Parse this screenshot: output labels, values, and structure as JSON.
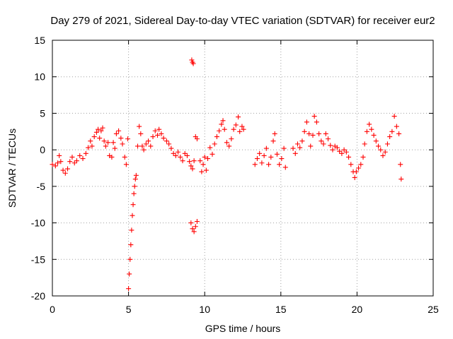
{
  "chart_data": {
    "type": "scatter",
    "title": "Day 279 of 2021, Sidereal Day-to-day VTEC variation (SDTVAR) for receiver eur2",
    "xlabel": "GPS time / hours",
    "ylabel": "SDTVAR / TECUs",
    "xlim": [
      0,
      25
    ],
    "ylim": [
      -20,
      15
    ],
    "x_ticks": [
      0,
      5,
      10,
      15,
      20,
      25
    ],
    "y_ticks": [
      -20,
      -15,
      -10,
      -5,
      0,
      5,
      10,
      15
    ],
    "x_tick_labels": [
      "0",
      "5",
      "10",
      "15",
      "20",
      "25"
    ],
    "y_tick_labels": [
      "-20",
      "-15",
      "-10",
      "-5",
      "0",
      "5",
      "10",
      "15"
    ],
    "grid": true,
    "marker": "plus",
    "marker_color": "#ff0000",
    "series": [
      {
        "name": "SDTVAR eur2",
        "points": [
          [
            0.0,
            -2.0
          ],
          [
            0.2,
            -2.2
          ],
          [
            0.35,
            -1.8
          ],
          [
            0.45,
            -0.8
          ],
          [
            0.55,
            -1.6
          ],
          [
            0.7,
            -2.8
          ],
          [
            0.85,
            -3.2
          ],
          [
            1.0,
            -2.6
          ],
          [
            1.15,
            -1.6
          ],
          [
            1.3,
            -1.0
          ],
          [
            1.45,
            -1.8
          ],
          [
            1.6,
            -1.5
          ],
          [
            1.8,
            -0.8
          ],
          [
            2.0,
            -1.2
          ],
          [
            2.2,
            -0.5
          ],
          [
            2.35,
            0.3
          ],
          [
            2.5,
            1.2
          ],
          [
            2.6,
            0.5
          ],
          [
            2.75,
            1.8
          ],
          [
            2.9,
            2.4
          ],
          [
            3.0,
            2.8
          ],
          [
            3.1,
            1.6
          ],
          [
            3.2,
            2.6
          ],
          [
            3.3,
            3.0
          ],
          [
            3.4,
            1.2
          ],
          [
            3.5,
            0.5
          ],
          [
            3.65,
            1.0
          ],
          [
            3.75,
            -0.8
          ],
          [
            3.9,
            -1.0
          ],
          [
            4.0,
            1.0
          ],
          [
            4.1,
            0.2
          ],
          [
            4.2,
            2.2
          ],
          [
            4.35,
            2.6
          ],
          [
            4.5,
            1.6
          ],
          [
            4.6,
            0.8
          ],
          [
            4.75,
            -1.0
          ],
          [
            4.85,
            -2.0
          ],
          [
            4.95,
            1.5
          ],
          [
            5.0,
            -19.0
          ],
          [
            5.05,
            -17.0
          ],
          [
            5.1,
            -15.0
          ],
          [
            5.15,
            -13.0
          ],
          [
            5.2,
            -11.0
          ],
          [
            5.25,
            -9.0
          ],
          [
            5.3,
            -7.5
          ],
          [
            5.35,
            -6.0
          ],
          [
            5.4,
            -5.0
          ],
          [
            5.45,
            -4.0
          ],
          [
            5.5,
            -3.5
          ],
          [
            5.6,
            0.5
          ],
          [
            5.7,
            3.2
          ],
          [
            5.8,
            2.2
          ],
          [
            5.9,
            0.5
          ],
          [
            6.0,
            0.0
          ],
          [
            6.15,
            0.8
          ],
          [
            6.3,
            1.2
          ],
          [
            6.45,
            0.5
          ],
          [
            6.6,
            1.8
          ],
          [
            6.75,
            2.6
          ],
          [
            6.9,
            2.0
          ],
          [
            7.0,
            2.8
          ],
          [
            7.15,
            2.2
          ],
          [
            7.3,
            1.6
          ],
          [
            7.5,
            1.2
          ],
          [
            7.65,
            0.8
          ],
          [
            7.8,
            0.2
          ],
          [
            7.95,
            -0.5
          ],
          [
            8.1,
            -0.8
          ],
          [
            8.25,
            -0.3
          ],
          [
            8.4,
            -1.0
          ],
          [
            8.55,
            -1.5
          ],
          [
            8.7,
            -0.5
          ],
          [
            8.85,
            -0.8
          ],
          [
            9.0,
            -1.6
          ],
          [
            9.1,
            -2.2
          ],
          [
            9.2,
            -2.6
          ],
          [
            9.3,
            -1.5
          ],
          [
            9.4,
            1.8
          ],
          [
            9.5,
            1.5
          ],
          [
            9.15,
            12.3
          ],
          [
            9.2,
            12.0
          ],
          [
            9.25,
            11.8
          ],
          [
            9.1,
            -10.0
          ],
          [
            9.2,
            -10.8
          ],
          [
            9.3,
            -11.2
          ],
          [
            9.4,
            -10.5
          ],
          [
            9.5,
            -9.8
          ],
          [
            9.7,
            -1.5
          ],
          [
            9.8,
            -3.0
          ],
          [
            9.9,
            -2.0
          ],
          [
            10.0,
            -1.0
          ],
          [
            10.1,
            -2.8
          ],
          [
            10.2,
            -1.2
          ],
          [
            10.35,
            0.3
          ],
          [
            10.5,
            -0.6
          ],
          [
            10.65,
            0.8
          ],
          [
            10.8,
            1.8
          ],
          [
            10.95,
            2.6
          ],
          [
            11.1,
            3.5
          ],
          [
            11.2,
            4.0
          ],
          [
            11.3,
            2.8
          ],
          [
            11.45,
            1.0
          ],
          [
            11.6,
            0.5
          ],
          [
            11.75,
            1.5
          ],
          [
            11.9,
            2.8
          ],
          [
            12.05,
            3.4
          ],
          [
            12.2,
            4.5
          ],
          [
            12.3,
            2.5
          ],
          [
            12.45,
            3.2
          ],
          [
            12.55,
            2.8
          ],
          [
            13.3,
            -2.0
          ],
          [
            13.45,
            -1.2
          ],
          [
            13.6,
            -0.5
          ],
          [
            13.75,
            -1.8
          ],
          [
            13.9,
            -0.8
          ],
          [
            14.05,
            0.2
          ],
          [
            14.2,
            -2.0
          ],
          [
            14.35,
            -1.0
          ],
          [
            14.5,
            1.2
          ],
          [
            14.6,
            2.2
          ],
          [
            14.75,
            -0.6
          ],
          [
            14.9,
            -2.0
          ],
          [
            15.05,
            -1.2
          ],
          [
            15.2,
            0.2
          ],
          [
            15.3,
            -2.4
          ],
          [
            15.8,
            0.2
          ],
          [
            15.95,
            -0.5
          ],
          [
            16.1,
            0.8
          ],
          [
            16.25,
            0.3
          ],
          [
            16.4,
            1.2
          ],
          [
            16.55,
            2.5
          ],
          [
            16.7,
            3.8
          ],
          [
            16.85,
            2.2
          ],
          [
            16.95,
            0.5
          ],
          [
            17.1,
            2.0
          ],
          [
            17.2,
            4.6
          ],
          [
            17.35,
            3.8
          ],
          [
            17.5,
            2.2
          ],
          [
            17.65,
            1.2
          ],
          [
            17.8,
            0.8
          ],
          [
            17.95,
            2.2
          ],
          [
            18.1,
            1.5
          ],
          [
            18.25,
            0.6
          ],
          [
            18.4,
            0.0
          ],
          [
            18.55,
            0.5
          ],
          [
            18.7,
            0.3
          ],
          [
            18.85,
            -0.2
          ],
          [
            19.0,
            -0.5
          ],
          [
            19.15,
            0.0
          ],
          [
            19.3,
            -0.3
          ],
          [
            19.45,
            -1.0
          ],
          [
            19.6,
            -2.0
          ],
          [
            19.75,
            -3.0
          ],
          [
            19.85,
            -3.8
          ],
          [
            19.95,
            -3.0
          ],
          [
            20.1,
            -2.5
          ],
          [
            20.25,
            -2.0
          ],
          [
            20.4,
            -1.0
          ],
          [
            20.5,
            0.8
          ],
          [
            20.65,
            2.5
          ],
          [
            20.8,
            3.5
          ],
          [
            20.95,
            2.8
          ],
          [
            21.1,
            2.0
          ],
          [
            21.25,
            1.2
          ],
          [
            21.4,
            0.5
          ],
          [
            21.55,
            0.0
          ],
          [
            21.7,
            -0.8
          ],
          [
            21.85,
            -0.3
          ],
          [
            22.0,
            0.8
          ],
          [
            22.15,
            1.8
          ],
          [
            22.3,
            2.5
          ],
          [
            22.45,
            4.6
          ],
          [
            22.6,
            3.2
          ],
          [
            22.75,
            2.2
          ],
          [
            22.85,
            -2.0
          ],
          [
            22.9,
            -4.0
          ]
        ]
      }
    ]
  }
}
